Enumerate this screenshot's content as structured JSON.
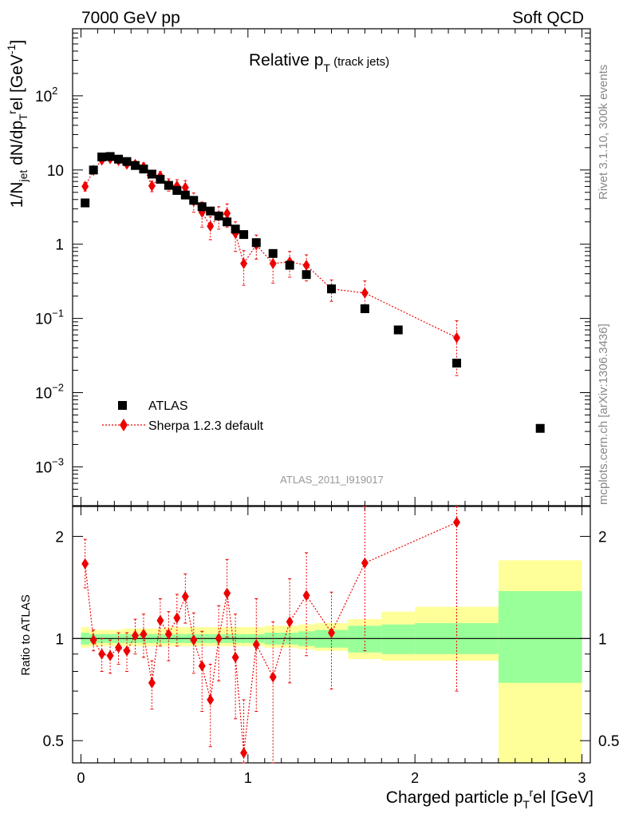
{
  "header": {
    "energy": "7000 GeV pp",
    "process": "Soft QCD"
  },
  "side": {
    "rivet": "Rivet 3.1.10,  300k events",
    "mcplots": "mcplots.cern.ch [arXiv:1306.3436]"
  },
  "watermark": "ATLAS_2011_I919017",
  "colors": {
    "data": "#000000",
    "mc": "#ee0000",
    "band_inner": "#99ff99",
    "band_outer": "#ffff99"
  },
  "chart_data": [
    {
      "type": "scatter",
      "title": "Relative p_T (track jets)",
      "ylabel": "1/N_jet dN/dp_T^rel [GeV^-1]",
      "xlim": [
        -0.05,
        3.05
      ],
      "ylim": [
        0.0003,
        800
      ],
      "yscale": "log",
      "legend_position": "lower-left",
      "series": [
        {
          "name": "ATLAS",
          "marker": "square",
          "x": [
            0.025,
            0.075,
            0.125,
            0.175,
            0.225,
            0.275,
            0.325,
            0.375,
            0.425,
            0.475,
            0.525,
            0.575,
            0.625,
            0.675,
            0.725,
            0.775,
            0.825,
            0.875,
            0.925,
            0.975,
            1.05,
            1.15,
            1.25,
            1.35,
            1.5,
            1.7,
            1.9,
            2.25,
            2.75
          ],
          "y": [
            3.6,
            10.0,
            15.0,
            15.2,
            14.0,
            13.0,
            11.5,
            10.3,
            8.8,
            7.5,
            6.2,
            5.3,
            4.6,
            3.9,
            3.2,
            2.8,
            2.4,
            2.0,
            1.6,
            1.35,
            1.05,
            0.75,
            0.52,
            0.39,
            0.25,
            0.135,
            0.07,
            0.025,
            0.0033
          ]
        },
        {
          "name": "Sherpa 1.2.3 default",
          "marker": "diamond",
          "x": [
            0.025,
            0.075,
            0.125,
            0.175,
            0.225,
            0.275,
            0.325,
            0.375,
            0.425,
            0.475,
            0.525,
            0.575,
            0.625,
            0.675,
            0.725,
            0.775,
            0.825,
            0.875,
            0.925,
            0.975,
            1.05,
            1.15,
            1.25,
            1.35,
            1.5,
            1.7,
            2.25
          ],
          "y": [
            6.0,
            9.9,
            13.6,
            14.2,
            13.4,
            12.0,
            11.9,
            11.0,
            6.1,
            8.3,
            6.4,
            6.1,
            5.8,
            3.8,
            2.7,
            1.75,
            2.4,
            2.6,
            1.4,
            0.55,
            0.98,
            0.55,
            0.58,
            0.52,
            0.25,
            0.22,
            0.055
          ],
          "err_lo": [
            0.8,
            0.6,
            1.0,
            1.2,
            1.2,
            1.2,
            1.3,
            1.4,
            1.0,
            1.2,
            1.2,
            1.3,
            1.4,
            1.1,
            1.0,
            0.6,
            0.8,
            0.9,
            0.6,
            0.27,
            0.35,
            0.25,
            0.22,
            0.2,
            0.08,
            0.1,
            0.038
          ],
          "err_hi": [
            0.8,
            0.6,
            1.0,
            1.2,
            1.2,
            1.2,
            1.3,
            1.4,
            1.0,
            1.2,
            1.2,
            1.3,
            1.4,
            1.1,
            1.0,
            0.6,
            0.8,
            0.9,
            0.6,
            0.27,
            0.35,
            0.25,
            0.22,
            0.2,
            0.08,
            0.1,
            0.038
          ]
        }
      ]
    },
    {
      "type": "scatter",
      "ylabel": "Ratio to ATLAS",
      "xlabel": "Charged particle p_T^rel [GeV]",
      "xlim": [
        -0.05,
        3.05
      ],
      "ylim": [
        0.43,
        2.45
      ],
      "yscale": "log",
      "reference_line": 1,
      "x_ticks": [
        "0",
        "1",
        "2",
        "3"
      ],
      "y_ticks": [
        "0.5",
        "1",
        "2"
      ],
      "bands": {
        "edges": [
          0,
          0.05,
          0.1,
          0.15,
          0.2,
          0.25,
          0.3,
          0.35,
          0.4,
          0.45,
          0.5,
          0.55,
          0.6,
          0.65,
          0.7,
          0.75,
          0.8,
          0.85,
          0.9,
          0.95,
          1.0,
          1.1,
          1.2,
          1.3,
          1.4,
          1.6,
          1.8,
          2.0,
          2.5,
          3.0
        ],
        "inner_lo": [
          0.96,
          0.97,
          0.97,
          0.97,
          0.97,
          0.97,
          0.97,
          0.97,
          0.97,
          0.97,
          0.97,
          0.97,
          0.97,
          0.97,
          0.97,
          0.97,
          0.97,
          0.97,
          0.97,
          0.97,
          0.97,
          0.96,
          0.96,
          0.95,
          0.94,
          0.91,
          0.9,
          0.9,
          0.74
        ],
        "inner_hi": [
          1.04,
          1.03,
          1.03,
          1.03,
          1.03,
          1.03,
          1.03,
          1.03,
          1.03,
          1.03,
          1.03,
          1.03,
          1.03,
          1.03,
          1.03,
          1.03,
          1.03,
          1.03,
          1.03,
          1.03,
          1.03,
          1.04,
          1.04,
          1.05,
          1.06,
          1.09,
          1.1,
          1.11,
          1.38
        ],
        "outer_lo": [
          0.94,
          0.95,
          0.95,
          0.95,
          0.95,
          0.95,
          0.95,
          0.95,
          0.95,
          0.95,
          0.95,
          0.95,
          0.95,
          0.95,
          0.95,
          0.95,
          0.95,
          0.95,
          0.95,
          0.95,
          0.95,
          0.94,
          0.94,
          0.93,
          0.92,
          0.87,
          0.86,
          0.86,
          0.3
        ],
        "outer_hi": [
          1.08,
          1.06,
          1.06,
          1.06,
          1.06,
          1.07,
          1.07,
          1.07,
          1.07,
          1.07,
          1.08,
          1.08,
          1.08,
          1.08,
          1.08,
          1.08,
          1.08,
          1.08,
          1.08,
          1.08,
          1.08,
          1.09,
          1.09,
          1.1,
          1.11,
          1.14,
          1.2,
          1.24,
          1.7
        ]
      },
      "series": [
        {
          "name": "Sherpa 1.2.3 default",
          "x": [
            0.025,
            0.075,
            0.125,
            0.175,
            0.225,
            0.275,
            0.325,
            0.375,
            0.425,
            0.475,
            0.525,
            0.575,
            0.625,
            0.675,
            0.725,
            0.775,
            0.825,
            0.875,
            0.925,
            0.975,
            1.05,
            1.15,
            1.25,
            1.35,
            1.5,
            1.7,
            2.25
          ],
          "y": [
            1.66,
            0.99,
            0.9,
            0.89,
            0.94,
            0.92,
            1.02,
            1.03,
            0.74,
            1.13,
            1.03,
            1.15,
            1.33,
            0.99,
            0.83,
            0.66,
            1.0,
            1.36,
            0.88,
            0.46,
            0.96,
            0.77,
            1.12,
            1.34,
            1.04,
            1.67,
            2.2
          ],
          "err_lo": [
            0.25,
            0.07,
            0.1,
            0.1,
            0.1,
            0.12,
            0.12,
            0.15,
            0.12,
            0.18,
            0.17,
            0.2,
            0.22,
            0.2,
            0.22,
            0.18,
            0.25,
            0.35,
            0.3,
            0.2,
            0.35,
            0.35,
            0.38,
            0.45,
            0.33,
            0.75,
            1.5
          ],
          "err_hi": [
            0.3,
            0.07,
            0.1,
            0.1,
            0.1,
            0.12,
            0.12,
            0.15,
            0.12,
            0.18,
            0.17,
            0.2,
            0.22,
            0.2,
            0.22,
            0.18,
            0.25,
            0.35,
            0.3,
            0.2,
            0.35,
            0.35,
            0.38,
            0.45,
            0.33,
            0.8,
            0.9
          ]
        }
      ]
    }
  ]
}
